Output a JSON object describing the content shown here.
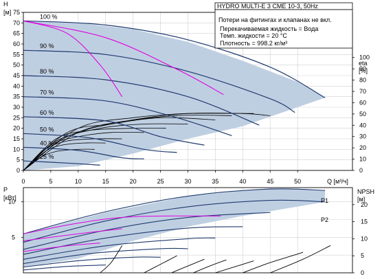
{
  "chart_data": [
    {
      "type": "line",
      "title": "HYDRO MULTI-E 3 CME 10-3, 50Hz",
      "notes": [
        "Потери на фитингах и клапанах не вкл.",
        "Перекачиваемая жидкость = Вода",
        "Темп. жидкости = 20 °C",
        "Плотность = 998.2 кг/м³"
      ],
      "xlabel": "Q [м³/ч]",
      "ylabel_left": "H",
      "ylabel_left_unit": "[м]",
      "ylabel_right": "eta",
      "ylabel_right_unit": "[%]",
      "xlim": [
        0,
        60
      ],
      "ylim": [
        0,
        75
      ],
      "y2lim": [
        0,
        140
      ],
      "xticks": [
        0,
        5,
        10,
        15,
        20,
        25,
        30,
        35,
        40,
        45,
        50
      ],
      "yticks": [
        0,
        5,
        10,
        15,
        20,
        25,
        30,
        35,
        40,
        45,
        50,
        55,
        60,
        65,
        70,
        75
      ],
      "y2ticks": [
        0,
        10,
        20,
        30,
        40,
        50,
        60,
        70,
        80,
        90,
        100
      ],
      "grid": true,
      "envelope": {
        "upper": [
          [
            0,
            71
          ],
          [
            10,
            70
          ],
          [
            20,
            67
          ],
          [
            30,
            61
          ],
          [
            40,
            52
          ],
          [
            50,
            42
          ],
          [
            55,
            34.5
          ]
        ],
        "lower": [
          [
            55,
            34.5
          ],
          [
            40,
            21
          ],
          [
            30,
            15
          ],
          [
            20,
            8
          ],
          [
            10,
            2
          ],
          [
            0,
            0
          ]
        ]
      },
      "speed_curves": [
        {
          "label": "100 %",
          "points": [
            [
              0,
              71
            ],
            [
              15,
              69
            ],
            [
              30,
              62
            ],
            [
              45,
              49
            ],
            [
              55,
              34.5
            ]
          ]
        },
        {
          "label": "90 %",
          "points": [
            [
              0,
              57
            ],
            [
              15,
              55
            ],
            [
              30,
              47
            ],
            [
              45,
              34
            ],
            [
              49.5,
              27.5
            ]
          ]
        },
        {
          "label": "80 %",
          "points": [
            [
              0,
              45
            ],
            [
              15,
              43
            ],
            [
              30,
              35
            ],
            [
              43,
              21.5
            ]
          ]
        },
        {
          "label": "70 %",
          "points": [
            [
              0,
              35
            ],
            [
              15,
              33
            ],
            [
              28,
              25
            ],
            [
              38,
              16.5
            ]
          ]
        },
        {
          "label": "60 %",
          "points": [
            [
              0,
              25.5
            ],
            [
              15,
              23.5
            ],
            [
              25,
              16
            ],
            [
              33,
              12
            ]
          ]
        },
        {
          "label": "50 %",
          "points": [
            [
              0,
              17.5
            ],
            [
              12,
              15.5
            ],
            [
              22,
              10
            ],
            [
              28,
              8.5
            ]
          ]
        },
        {
          "label": "40 %",
          "points": [
            [
              0,
              11
            ],
            [
              10,
              9.5
            ],
            [
              18,
              6
            ],
            [
              22,
              5.5
            ]
          ]
        },
        {
          "label": "25 %",
          "points": [
            [
              0,
              4.5
            ],
            [
              8,
              3.5
            ],
            [
              14,
              2.5
            ]
          ]
        }
      ],
      "system_curves": [
        {
          "points": [
            [
              0,
              71
            ],
            [
              8,
              65
            ],
            [
              14,
              50
            ],
            [
              18,
              35
            ]
          ]
        },
        {
          "points": [
            [
              0,
              71
            ],
            [
              15,
              63
            ],
            [
              28,
              48
            ],
            [
              36.5,
              36
            ]
          ]
        }
      ],
      "efficiency_curves": [
        {
          "points": [
            [
              0,
              0
            ],
            [
              10,
              18
            ],
            [
              20,
              24
            ],
            [
              30,
              27
            ],
            [
              40,
              27
            ],
            [
              45,
              26
            ]
          ]
        },
        {
          "points": [
            [
              0,
              0
            ],
            [
              10,
              20
            ],
            [
              20,
              25
            ],
            [
              30,
              27
            ],
            [
              42,
              27
            ]
          ]
        },
        {
          "points": [
            [
              0,
              0
            ],
            [
              8,
              16
            ],
            [
              18,
              23
            ],
            [
              28,
              26
            ],
            [
              38,
              26
            ]
          ]
        },
        {
          "points": [
            [
              0,
              0
            ],
            [
              8,
              18
            ],
            [
              16,
              22
            ],
            [
              25,
              25
            ],
            [
              35,
              24
            ]
          ]
        },
        {
          "points": [
            [
              0,
              0
            ],
            [
              6,
              14
            ],
            [
              14,
              20
            ],
            [
              22,
              22
            ],
            [
              30,
              22
            ]
          ]
        },
        {
          "points": [
            [
              0,
              0
            ],
            [
              6,
              15
            ],
            [
              12,
              19
            ],
            [
              20,
              20
            ],
            [
              26,
              20
            ]
          ]
        },
        {
          "points": [
            [
              0,
              0
            ],
            [
              5,
              12
            ],
            [
              10,
              16
            ],
            [
              16,
              18
            ],
            [
              22,
              18
            ]
          ]
        },
        {
          "points": [
            [
              0,
              0
            ],
            [
              4,
              10
            ],
            [
              8,
              14
            ],
            [
              13,
              15
            ],
            [
              18,
              15
            ]
          ]
        },
        {
          "points": [
            [
              0,
              0
            ],
            [
              4,
              9
            ],
            [
              7,
              12
            ],
            [
              11,
              13
            ],
            [
              15,
              13
            ]
          ]
        },
        {
          "points": [
            [
              0,
              0
            ],
            [
              3,
              6
            ],
            [
              6,
              9
            ],
            [
              10,
              10
            ],
            [
              13,
              10
            ]
          ]
        }
      ],
      "series_colors": {
        "speed": "#1f3a6e",
        "system": "#e000e0",
        "envelope_fill": "#bfcfe2",
        "efficiency": "#000000"
      }
    },
    {
      "type": "line",
      "xlim": [
        0,
        60
      ],
      "ylim": [
        0,
        12
      ],
      "y2lim": [
        0,
        25
      ],
      "ylabel_left": "P",
      "ylabel_left_unit": "[кВт]",
      "ylabel_right": "NPSH",
      "ylabel_right_unit": "[м]",
      "yticks": [
        5,
        10
      ],
      "y2ticks": [
        0,
        5,
        10,
        15,
        20
      ],
      "curve_labels": [
        "P1",
        "P2"
      ],
      "envelope": {
        "upper": [
          [
            0,
            5.5
          ],
          [
            15,
            8.5
          ],
          [
            30,
            10.8
          ],
          [
            45,
            11.9
          ],
          [
            55,
            11.6
          ]
        ],
        "lower": [
          [
            55,
            10
          ],
          [
            40,
            8
          ],
          [
            30,
            6.5
          ],
          [
            20,
            4.5
          ],
          [
            10,
            2
          ],
          [
            0,
            0.8
          ]
        ]
      },
      "power_curves": [
        {
          "points": [
            [
              0,
              5.5
            ],
            [
              15,
              8.6
            ],
            [
              30,
              10.8
            ],
            [
              45,
              11.8
            ],
            [
              55,
              11.6
            ]
          ]
        },
        {
          "points": [
            [
              0,
              4.3
            ],
            [
              15,
              7.3
            ],
            [
              30,
              9.3
            ],
            [
              45,
              10.2
            ],
            [
              55,
              10.0
            ]
          ]
        },
        {
          "points": [
            [
              0,
              3.3
            ],
            [
              15,
              6.0
            ],
            [
              30,
              7.8
            ],
            [
              45,
              8.5
            ]
          ]
        },
        {
          "points": [
            [
              0,
              2.6
            ],
            [
              15,
              4.9
            ],
            [
              30,
              6.3
            ],
            [
              40,
              6.5
            ]
          ]
        },
        {
          "points": [
            [
              0,
              1.9
            ],
            [
              15,
              3.8
            ],
            [
              30,
              4.8
            ],
            [
              35,
              4.9
            ]
          ]
        },
        {
          "points": [
            [
              0,
              1.3
            ],
            [
              12,
              2.7
            ],
            [
              25,
              3.4
            ],
            [
              30,
              3.4
            ]
          ]
        },
        {
          "points": [
            [
              0,
              0.8
            ],
            [
              10,
              1.7
            ],
            [
              20,
              2.2
            ],
            [
              25,
              2.2
            ]
          ]
        },
        {
          "points": [
            [
              0,
              0.4
            ],
            [
              8,
              0.9
            ],
            [
              15,
              1.1
            ]
          ]
        }
      ],
      "p_system_curves": [
        {
          "points": [
            [
              0,
              5.5
            ],
            [
              10,
              7.0
            ],
            [
              20,
              7.9
            ],
            [
              36,
              8.0
            ]
          ]
        },
        {
          "points": [
            [
              0,
              4.5
            ],
            [
              10,
              5.5
            ],
            [
              18,
              6.2
            ]
          ]
        },
        {
          "points": [
            [
              0,
              3.0
            ],
            [
              8,
              3.8
            ],
            [
              14,
              4.2
            ]
          ]
        }
      ],
      "npsh_curves": [
        {
          "points": [
            [
              14,
              0
            ],
            [
              16,
              3
            ],
            [
              18,
              8
            ]
          ]
        },
        {
          "points": [
            [
              22,
              0
            ],
            [
              25,
              2.5
            ],
            [
              28,
              5
            ]
          ]
        },
        {
          "points": [
            [
              27,
              0
            ],
            [
              30,
              2
            ],
            [
              33,
              4
            ]
          ]
        },
        {
          "points": [
            [
              31,
              0
            ],
            [
              34,
              2
            ],
            [
              37,
              3.8
            ]
          ]
        },
        {
          "points": [
            [
              35,
              0
            ],
            [
              39,
              2
            ],
            [
              42,
              3.5
            ]
          ]
        },
        {
          "points": [
            [
              40,
              0
            ],
            [
              45,
              3
            ],
            [
              51,
              6
            ]
          ]
        },
        {
          "points": [
            [
              45,
              0
            ],
            [
              51,
              4
            ],
            [
              56,
              8
            ]
          ]
        }
      ]
    }
  ]
}
